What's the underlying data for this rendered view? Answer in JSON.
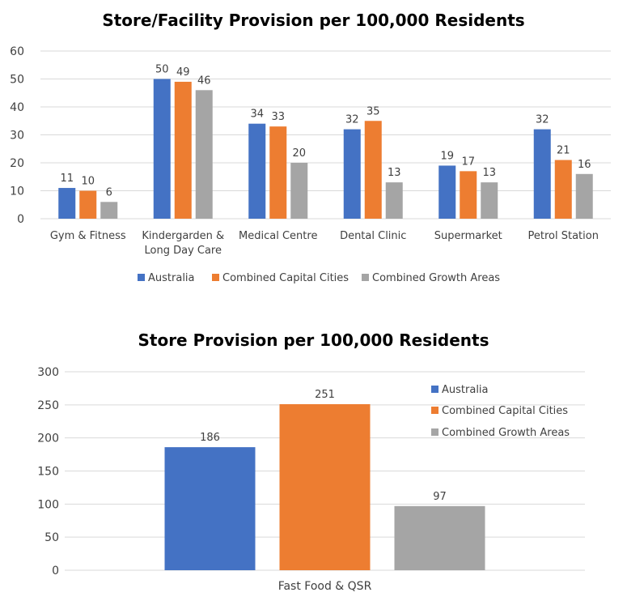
{
  "chart_data": [
    {
      "type": "bar",
      "title": "Store/Facility Provision per 100,000 Residents",
      "categories": [
        "Gym & Fitness",
        "Kindergarden &\nLong Day Care",
        "Medical Centre",
        "Dental Clinic",
        "Supermarket",
        "Petrol Station"
      ],
      "series": [
        {
          "name": "Australia",
          "values": [
            11,
            50,
            34,
            32,
            19,
            32
          ],
          "color": "#4472C4"
        },
        {
          "name": "Combined Capital Cities",
          "values": [
            10,
            49,
            33,
            35,
            17,
            21
          ],
          "color": "#ED7D31"
        },
        {
          "name": "Combined Growth Areas",
          "values": [
            6,
            46,
            20,
            13,
            13,
            16
          ],
          "color": "#A5A5A5"
        }
      ],
      "ylim": [
        0,
        60
      ],
      "yticks": [
        0,
        10,
        20,
        30,
        40,
        50,
        60
      ],
      "grid": true,
      "legend": "bottom",
      "xlabel": "",
      "ylabel": ""
    },
    {
      "type": "bar",
      "title": "Store Provision per 100,000 Residents",
      "categories": [
        "Fast Food & QSR"
      ],
      "series": [
        {
          "name": "Australia",
          "values": [
            186
          ],
          "color": "#4472C4"
        },
        {
          "name": "Combined Capital Cities",
          "values": [
            251
          ],
          "color": "#ED7D31"
        },
        {
          "name": "Combined Growth Areas",
          "values": [
            97
          ],
          "color": "#A5A5A5"
        }
      ],
      "ylim": [
        0,
        300
      ],
      "yticks": [
        0,
        50,
        100,
        150,
        200,
        250,
        300
      ],
      "grid": true,
      "legend": "top-right",
      "xlabel": "",
      "ylabel": ""
    }
  ]
}
